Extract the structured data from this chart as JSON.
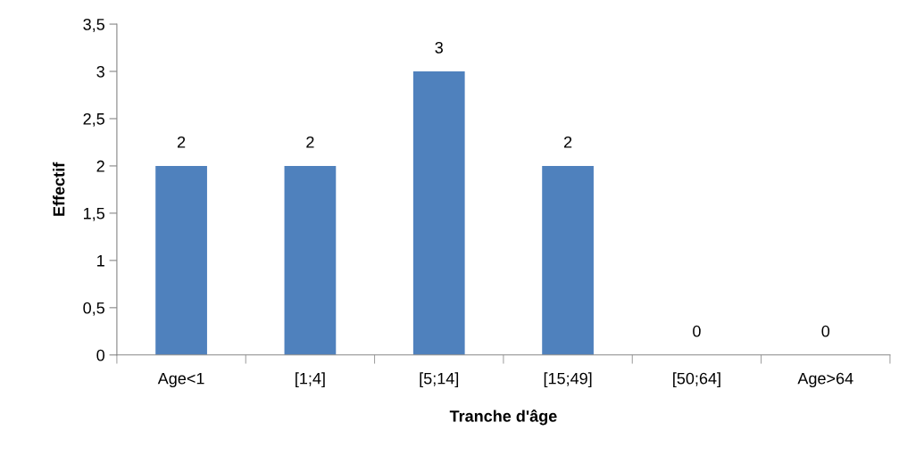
{
  "chart_data": {
    "type": "bar",
    "xlabel": "Tranche d'âge",
    "ylabel": "Effectif",
    "categories": [
      "Age<1",
      "[1;4]",
      "[5;14]",
      "[15;49]",
      "[50;64]",
      "Age>64"
    ],
    "values": [
      2,
      2,
      3,
      2,
      0,
      0
    ],
    "color": "#4f81bd",
    "ylim": [
      0,
      3.5
    ],
    "yticks": [
      0,
      {
        "value": 0.5,
        "label": "0,5"
      },
      1,
      {
        "value": 1.5,
        "label": "1,5"
      },
      2,
      {
        "value": 2.5,
        "label": "2,5"
      },
      3,
      {
        "value": 3.5,
        "label": "3,5"
      }
    ],
    "data_labels": true,
    "grid": false,
    "legend": false
  }
}
